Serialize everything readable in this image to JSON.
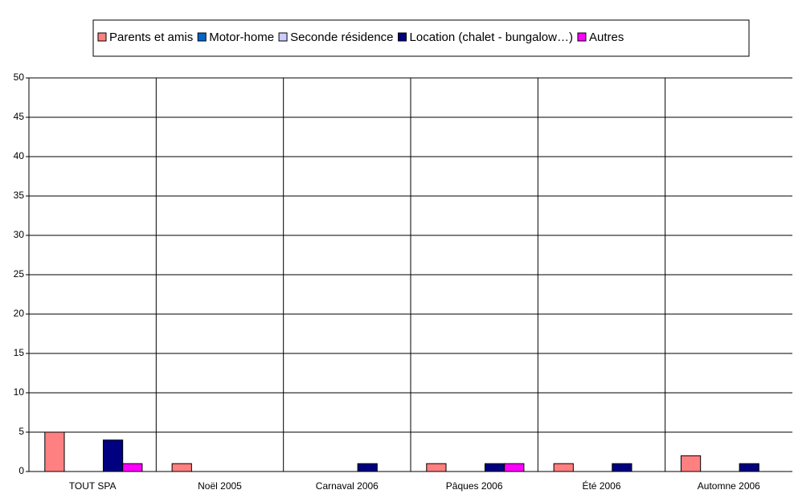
{
  "chart_data": {
    "type": "bar",
    "categories": [
      "TOUT SPA",
      "Noël 2005",
      "Carnaval 2006",
      "Pâques 2006",
      "Été 2006",
      "Automne 2006"
    ],
    "series": [
      {
        "name": "Parents et amis",
        "color": "#ff8080",
        "values": [
          5,
          1,
          0,
          1,
          1,
          2
        ]
      },
      {
        "name": "Motor-home",
        "color": "#0066cc",
        "values": [
          0,
          0,
          0,
          0,
          0,
          0
        ]
      },
      {
        "name": "Seconde résidence",
        "color": "#ccccff",
        "values": [
          0,
          0,
          0,
          0,
          0,
          0
        ]
      },
      {
        "name": "Location (chalet - bungalow…)",
        "color": "#000080",
        "values": [
          4,
          0,
          1,
          1,
          1,
          1
        ]
      },
      {
        "name": "Autres",
        "color": "#ff00ff",
        "values": [
          1,
          0,
          0,
          1,
          0,
          0
        ]
      }
    ],
    "ylim": [
      0,
      50
    ],
    "yticks": [
      0,
      5,
      10,
      15,
      20,
      25,
      30,
      35,
      40,
      45,
      50
    ],
    "grid": true,
    "legend": "top"
  }
}
